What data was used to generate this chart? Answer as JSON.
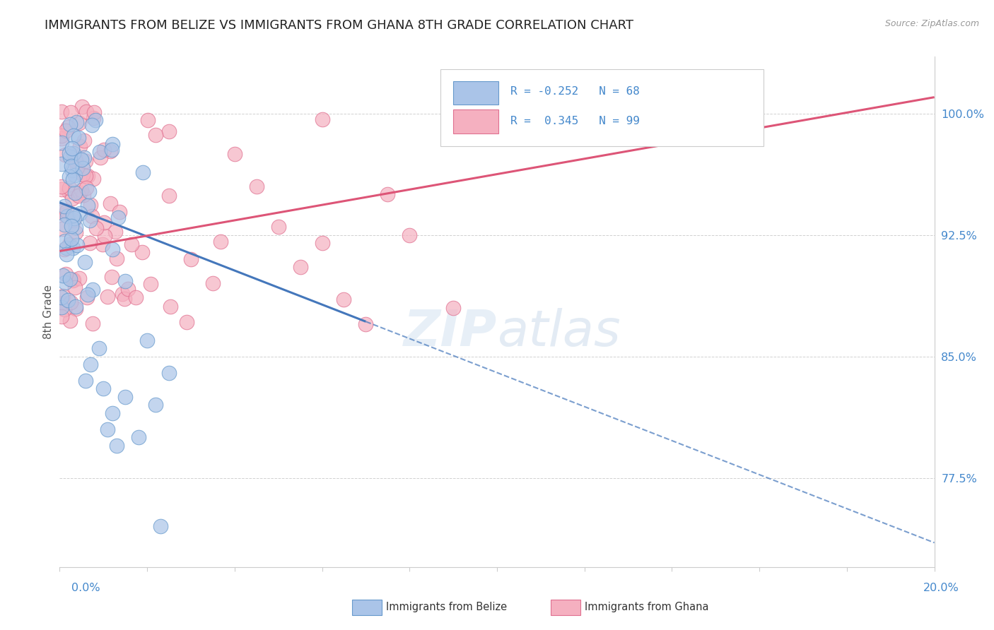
{
  "title": "IMMIGRANTS FROM BELIZE VS IMMIGRANTS FROM GHANA 8TH GRADE CORRELATION CHART",
  "source_text": "Source: ZipAtlas.com",
  "ylabel": "8th Grade",
  "xlim": [
    0.0,
    20.0
  ],
  "ylim": [
    72.0,
    103.5
  ],
  "yticks": [
    77.5,
    85.0,
    92.5,
    100.0
  ],
  "ytick_labels": [
    "77.5%",
    "85.0%",
    "92.5%",
    "100.0%"
  ],
  "belize_color": "#aac4e8",
  "ghana_color": "#f5b0c0",
  "belize_edge": "#6699cc",
  "ghana_edge": "#e07090",
  "belize_trend_color": "#4477bb",
  "ghana_trend_color": "#dd5577",
  "belize_R": -0.252,
  "belize_N": 68,
  "ghana_R": 0.345,
  "ghana_N": 99,
  "background_color": "#ffffff",
  "grid_color": "#cccccc",
  "axis_color": "#cccccc",
  "tick_color": "#4488cc",
  "title_color": "#222222",
  "title_fontsize": 13.0,
  "watermark_color": "#d0e0f0",
  "watermark_alpha": 0.5
}
